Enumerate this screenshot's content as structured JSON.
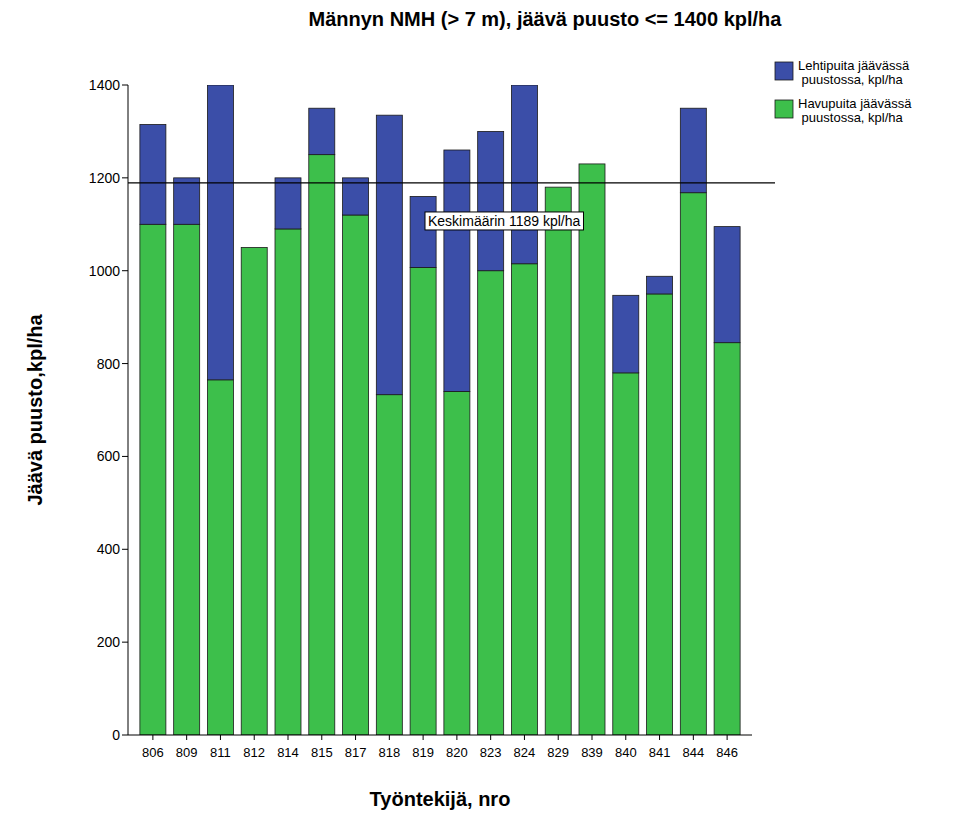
{
  "chart_data": {
    "type": "bar",
    "stacked": true,
    "title": "Männyn NMH (> 7 m), jäävä puusto <= 1400 kpl/ha",
    "x_label": "Työntekijä, nro",
    "y_label": "Jäävä puusto,kpl/ha",
    "categories": [
      "806",
      "809",
      "811",
      "812",
      "814",
      "815",
      "817",
      "818",
      "819",
      "820",
      "823",
      "824",
      "829",
      "839",
      "840",
      "841",
      "844",
      "846"
    ],
    "series": [
      {
        "name": "Havupuita jäävässä puustossa, kpl/ha",
        "color": "#3dbf4b",
        "values": [
          1100,
          1100,
          765,
          1050,
          1090,
          1250,
          1120,
          733,
          1007,
          740,
          1000,
          1015,
          1180,
          1230,
          780,
          950,
          1168,
          845
        ]
      },
      {
        "name": "Lehtipuita jäävässä puustossa, kpl/ha",
        "color": "#3b4ea8",
        "values": [
          215,
          100,
          635,
          0,
          110,
          100,
          80,
          602,
          153,
          520,
          300,
          385,
          0,
          0,
          167,
          38,
          182,
          250
        ]
      }
    ],
    "reference_line": {
      "value": 1189,
      "label": "Keskimäärin 1189 kpl/ha"
    },
    "ylim": [
      0,
      1400
    ],
    "yticks": [
      0,
      200,
      400,
      600,
      800,
      1000,
      1200,
      1400
    ],
    "legend": "top-right",
    "grid": false
  }
}
